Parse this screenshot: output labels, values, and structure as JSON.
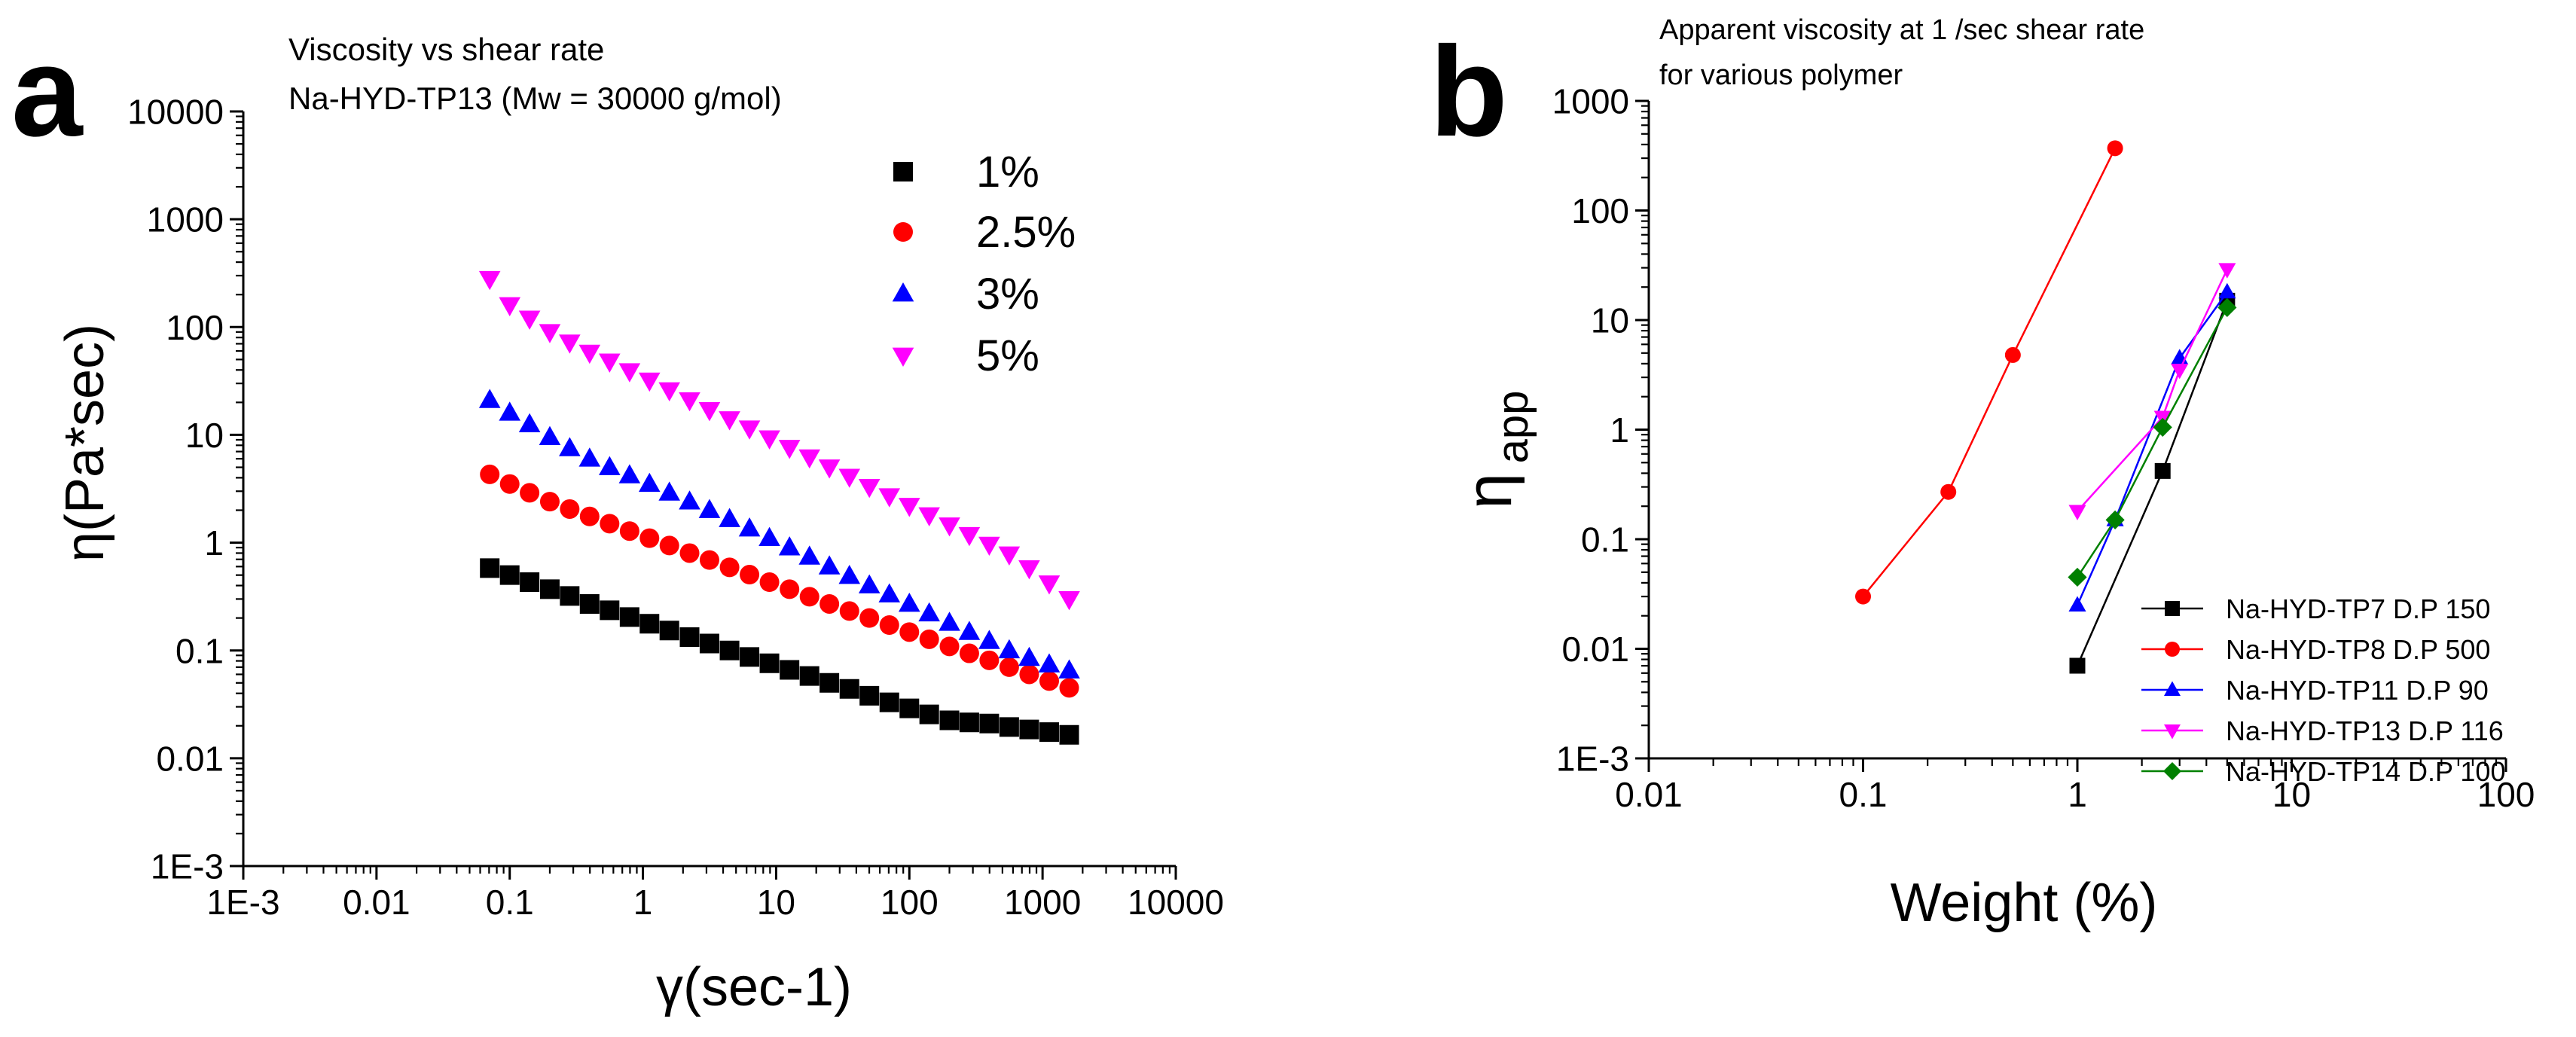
{
  "panels": {
    "a": {
      "letter": "a"
    },
    "b": {
      "letter": "b"
    }
  },
  "chart_data": [
    {
      "id": "a",
      "type": "scatter",
      "title": "Viscosity vs shear rate",
      "subtitle": "Na-HYD-TP13 (Mw = 30000 g/mol)",
      "xlabel": "γ(sec-1)",
      "ylabel": "η(Pa*sec)",
      "xscale": "log",
      "yscale": "log",
      "xlim": [
        0.001,
        10000
      ],
      "ylim": [
        0.001,
        10000
      ],
      "xticks": [
        0.001,
        0.01,
        0.1,
        1,
        10,
        100,
        1000,
        10000
      ],
      "xtick_labels": [
        "1E-3",
        "0.01",
        "0.1",
        "1",
        "10",
        "100",
        "1000",
        "10000"
      ],
      "yticks": [
        0.001,
        0.01,
        0.1,
        1,
        10,
        100,
        1000,
        10000
      ],
      "ytick_labels": [
        "1E-3",
        "0.01",
        "0.1",
        "1",
        "10",
        "100",
        "1000",
        "10000"
      ],
      "legend_position": "top-right",
      "x": [
        0.0708,
        0.1,
        0.141,
        0.2,
        0.282,
        0.398,
        0.562,
        0.794,
        1.12,
        1.58,
        2.24,
        3.16,
        4.47,
        6.31,
        8.91,
        12.6,
        17.8,
        25.1,
        35.5,
        50.1,
        70.8,
        100,
        141,
        200,
        282,
        398,
        562,
        794,
        1122,
        1585
      ],
      "series": [
        {
          "name": "1%",
          "marker": "square",
          "color": "#000000",
          "values": [
            0.58,
            0.5,
            0.43,
            0.37,
            0.32,
            0.27,
            0.236,
            0.204,
            0.177,
            0.153,
            0.133,
            0.116,
            0.1,
            0.087,
            0.076,
            0.066,
            0.058,
            0.05,
            0.044,
            0.038,
            0.033,
            0.029,
            0.0255,
            0.0225,
            0.0215,
            0.021,
            0.0195,
            0.0185,
            0.0175,
            0.0165
          ]
        },
        {
          "name": "2.5%",
          "marker": "circle",
          "color": "#ff0000",
          "values": [
            4.3,
            3.5,
            2.9,
            2.4,
            2.05,
            1.75,
            1.5,
            1.28,
            1.1,
            0.94,
            0.8,
            0.69,
            0.59,
            0.505,
            0.43,
            0.37,
            0.315,
            0.27,
            0.232,
            0.2,
            0.172,
            0.148,
            0.127,
            0.109,
            0.094,
            0.081,
            0.07,
            0.06,
            0.052,
            0.045
          ]
        },
        {
          "name": "3%",
          "marker": "triangle-up",
          "color": "#0000ff",
          "values": [
            21,
            16,
            12.5,
            9.5,
            7.5,
            6.0,
            5.0,
            4.2,
            3.5,
            2.9,
            2.4,
            2.0,
            1.65,
            1.35,
            1.1,
            0.9,
            0.74,
            0.6,
            0.49,
            0.4,
            0.33,
            0.27,
            0.22,
            0.18,
            0.148,
            0.122,
            0.1,
            0.085,
            0.074,
            0.065
          ]
        },
        {
          "name": "5%",
          "marker": "triangle-down",
          "color": "#ff00ff",
          "values": [
            280,
            160,
            120,
            90,
            72,
            58,
            48,
            39,
            32,
            26,
            21,
            17,
            14,
            11.5,
            9.3,
            7.6,
            6.2,
            5.0,
            4.1,
            3.3,
            2.7,
            2.2,
            1.8,
            1.45,
            1.18,
            0.96,
            0.78,
            0.58,
            0.42,
            0.3
          ]
        }
      ]
    },
    {
      "id": "b",
      "type": "line",
      "title": "Apparent viscosity at 1 /sec shear rate",
      "subtitle": "for various polymer",
      "xlabel": "Weight (%)",
      "ylabel_main": "η",
      "ylabel_sub": "app",
      "xscale": "log",
      "yscale": "log",
      "xlim": [
        0.01,
        100
      ],
      "ylim": [
        0.001,
        1000
      ],
      "xticks": [
        0.01,
        0.1,
        1,
        10,
        100
      ],
      "xtick_labels": [
        "0.01",
        "0.1",
        "1",
        "10",
        "100"
      ],
      "yticks": [
        0.001,
        0.01,
        0.1,
        1,
        10,
        100,
        1000
      ],
      "ytick_labels": [
        "1E-3",
        "0.01",
        "0.1",
        "1",
        "10",
        "100",
        "1000"
      ],
      "legend_position": "bottom-right",
      "series": [
        {
          "name": "Na-HYD-TP7 D.P 150",
          "marker": "square",
          "color": "#000000",
          "x": [
            1,
            2.5,
            5
          ],
          "values": [
            0.007,
            0.42,
            15
          ]
        },
        {
          "name": "Na-HYD-TP8 D.P 500",
          "marker": "circle",
          "color": "#ff0000",
          "x": [
            0.1,
            0.25,
            0.5,
            1.5
          ],
          "values": [
            0.03,
            0.27,
            4.8,
            370
          ]
        },
        {
          "name": "Na-HYD-TP11 D.P 90",
          "marker": "triangle-up",
          "color": "#0000ff",
          "x": [
            1,
            1.5,
            3,
            5
          ],
          "values": [
            0.025,
            0.15,
            4.5,
            18
          ]
        },
        {
          "name": "Na-HYD-TP13 D.P 116",
          "marker": "triangle-down",
          "color": "#ff00ff",
          "x": [
            1,
            2.5,
            3,
            5
          ],
          "values": [
            0.18,
            1.3,
            3.5,
            29
          ]
        },
        {
          "name": "Na-HYD-TP14 D.P 100",
          "marker": "diamond",
          "color": "#008000",
          "x": [
            1,
            1.5,
            2.5,
            5
          ],
          "values": [
            0.045,
            0.15,
            1.05,
            13
          ]
        }
      ]
    }
  ]
}
